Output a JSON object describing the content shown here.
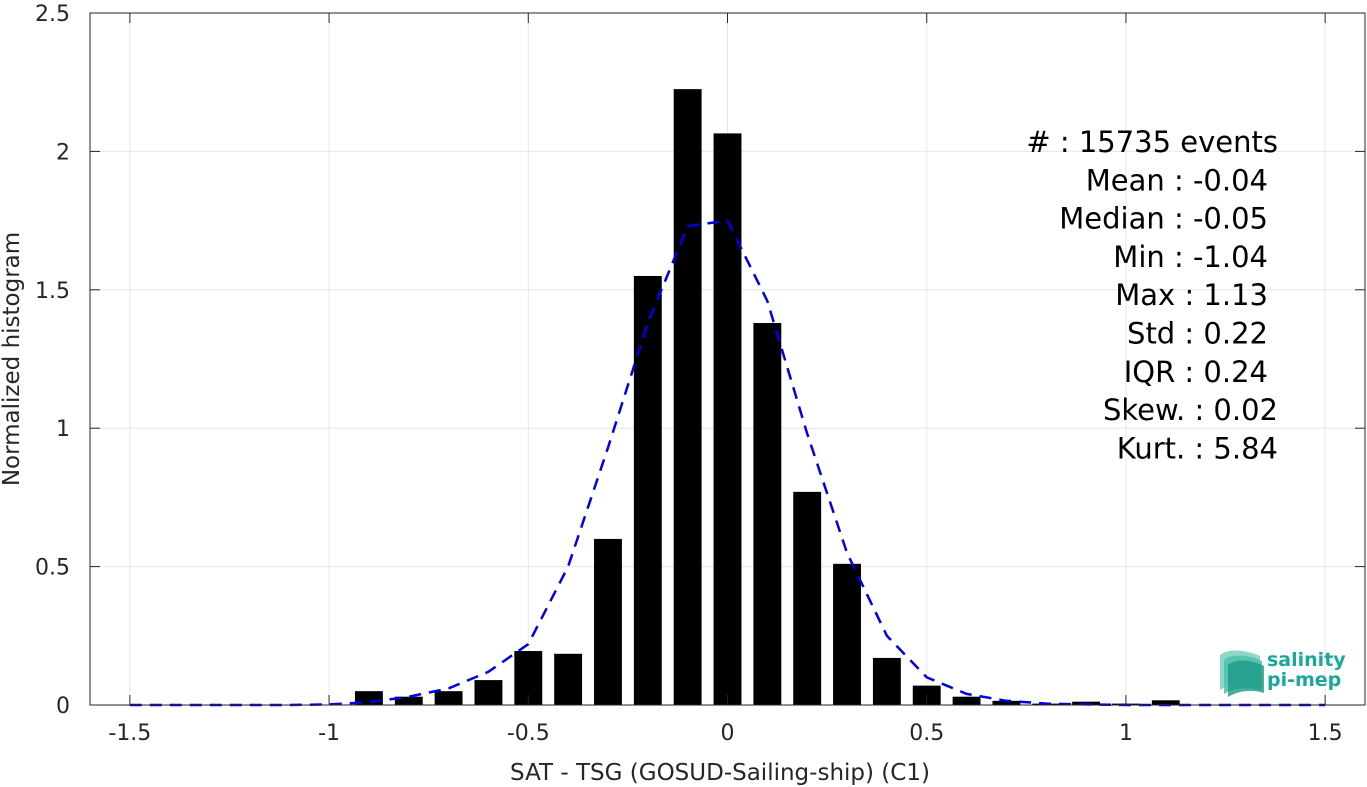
{
  "chart_data": {
    "type": "bar",
    "xlabel": "SAT - TSG (GOSUD-Sailing-ship) (C1)",
    "ylabel": "Normalized histogram",
    "xlim": [
      -1.6,
      1.6
    ],
    "ylim": [
      0,
      2.5
    ],
    "xticks": [
      -1.5,
      -1,
      -0.5,
      0,
      0.5,
      1,
      1.5
    ],
    "xtick_labels": [
      "-1.5",
      "-1",
      "-0.5",
      "0",
      "0.5",
      "1",
      "1.5"
    ],
    "yticks": [
      0,
      0.5,
      1,
      1.5,
      2,
      2.5
    ],
    "ytick_labels": [
      "0",
      "0.5",
      "1",
      "1.5",
      "2",
      "2.5"
    ],
    "grid": true,
    "bar_color": "#000000",
    "bins": {
      "x": [
        -0.9,
        -0.8,
        -0.7,
        -0.6,
        -0.5,
        -0.4,
        -0.3,
        -0.2,
        -0.1,
        0.0,
        0.1,
        0.2,
        0.3,
        0.4,
        0.5,
        0.6,
        0.7,
        0.8,
        0.9,
        1.0,
        1.1
      ],
      "values": [
        0.05,
        0.03,
        0.05,
        0.09,
        0.195,
        0.185,
        0.6,
        1.55,
        2.225,
        2.065,
        1.38,
        0.77,
        0.51,
        0.17,
        0.07,
        0.03,
        0.015,
        0.005,
        0.012,
        0.005,
        0.017
      ]
    },
    "fit": {
      "name": "fit",
      "style": "dashed",
      "color": "#0000e6",
      "x": [
        -1.5,
        -1.4,
        -1.3,
        -1.2,
        -1.1,
        -1.0,
        -0.9,
        -0.8,
        -0.7,
        -0.6,
        -0.5,
        -0.4,
        -0.3,
        -0.2,
        -0.1,
        0.0,
        0.1,
        0.2,
        0.3,
        0.4,
        0.5,
        0.6,
        0.7,
        0.8,
        0.9,
        1.0,
        1.1,
        1.2,
        1.3,
        1.4,
        1.5
      ],
      "y": [
        0,
        0,
        0,
        0,
        0,
        0.002,
        0.01,
        0.03,
        0.06,
        0.12,
        0.22,
        0.5,
        0.93,
        1.38,
        1.73,
        1.75,
        1.46,
        0.98,
        0.55,
        0.25,
        0.1,
        0.04,
        0.015,
        0.005,
        0.002,
        0,
        0,
        0,
        0,
        0,
        0
      ]
    },
    "stats_lines": [
      "#  : 15735 events",
      "Mean : -0.04",
      "Median : -0.05",
      "Min : -1.04",
      "Max : 1.13",
      "Std : 0.22",
      "IQR : 0.24",
      "Skew. : 0.02",
      "Kurt. : 5.84"
    ],
    "logo": {
      "line1": "salinity",
      "line2": "pi-mep",
      "color": "#1aa89a"
    }
  }
}
